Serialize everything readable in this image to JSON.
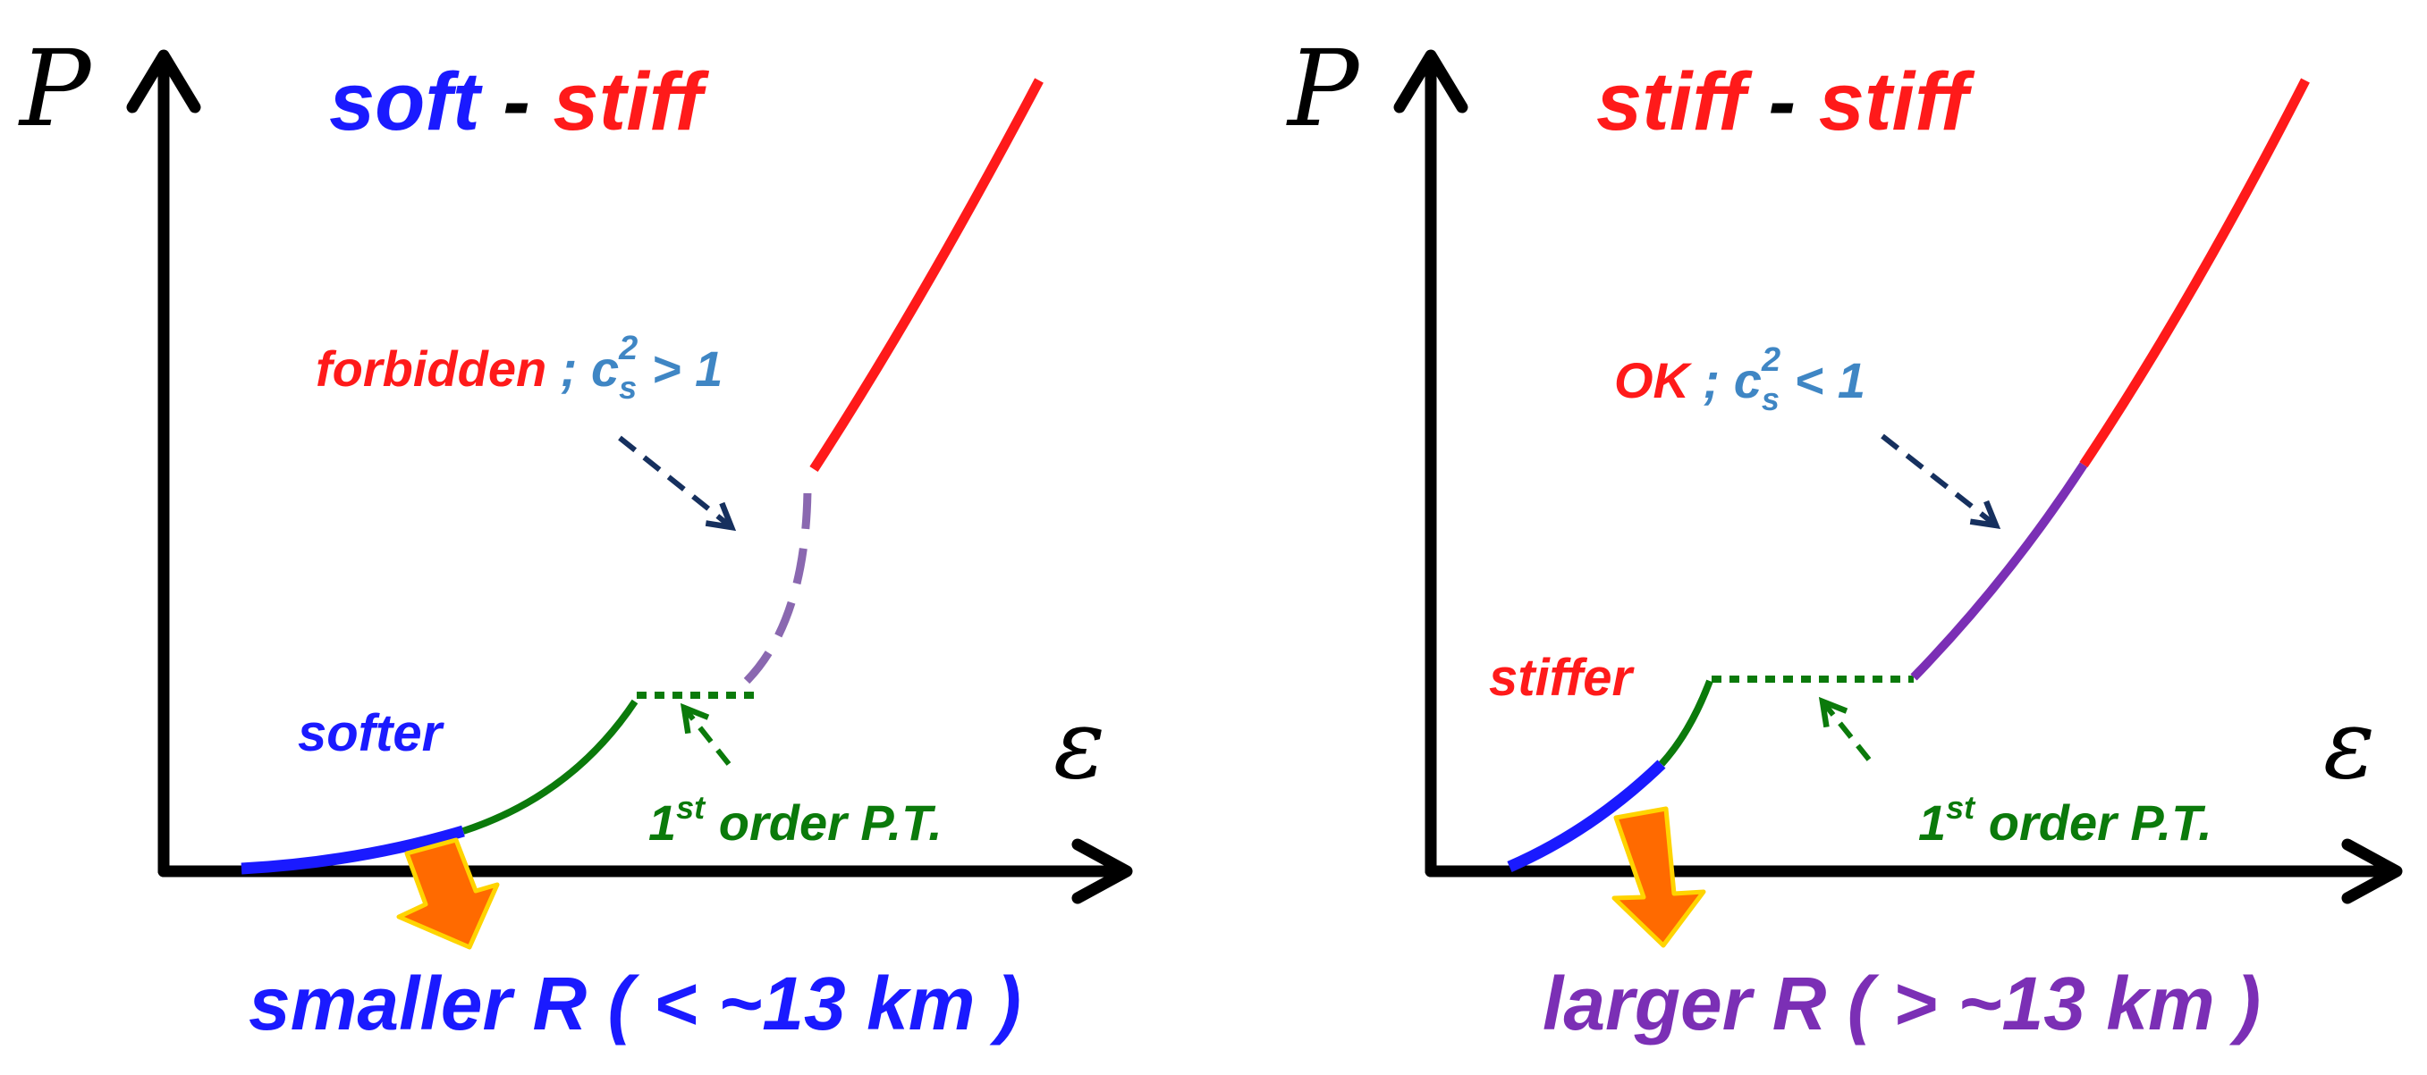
{
  "colors": {
    "axis": "#000000",
    "soft_blue": "#1a1aff",
    "stiff_red": "#ff1a1a",
    "transition_green": "#0b7a0b",
    "purple": "#7b2fb5",
    "purple_dashed": "#8a68b0",
    "note_blue": "#3f86c4",
    "arrow_navy": "#16305e",
    "big_arrow_orange": "#ff6a00",
    "big_arrow_outline": "#ffd400"
  },
  "panels": [
    {
      "axis_y_label": "P",
      "axis_x_label": "ε",
      "title_left": "soft",
      "title_sep": " - ",
      "title_right": "stiff",
      "low_density_label": "softer",
      "note_status": "forbidden",
      "note_sep": " ; ",
      "note_c": "c",
      "note_sub": "s",
      "note_sup": "2",
      "note_rel": " > 1",
      "pt_ord": "1",
      "pt_sup": "st",
      "pt_rest": " order P.T.",
      "result_label": "smaller R ( < ~13 km )",
      "high_density_style": "dashed"
    },
    {
      "axis_y_label": "P",
      "axis_x_label": "ε",
      "title_left": "stiff",
      "title_sep": " - ",
      "title_right": "stiff",
      "low_density_label": "stiffer",
      "note_status": "OK",
      "note_sep": " ; ",
      "note_c": "c",
      "note_sub": "s",
      "note_sup": "2",
      "note_rel": " < 1",
      "pt_ord": "1",
      "pt_sup": "st",
      "pt_rest": " order P.T.",
      "result_label": "larger R ( > ~13 km )",
      "high_density_style": "solid"
    }
  ]
}
